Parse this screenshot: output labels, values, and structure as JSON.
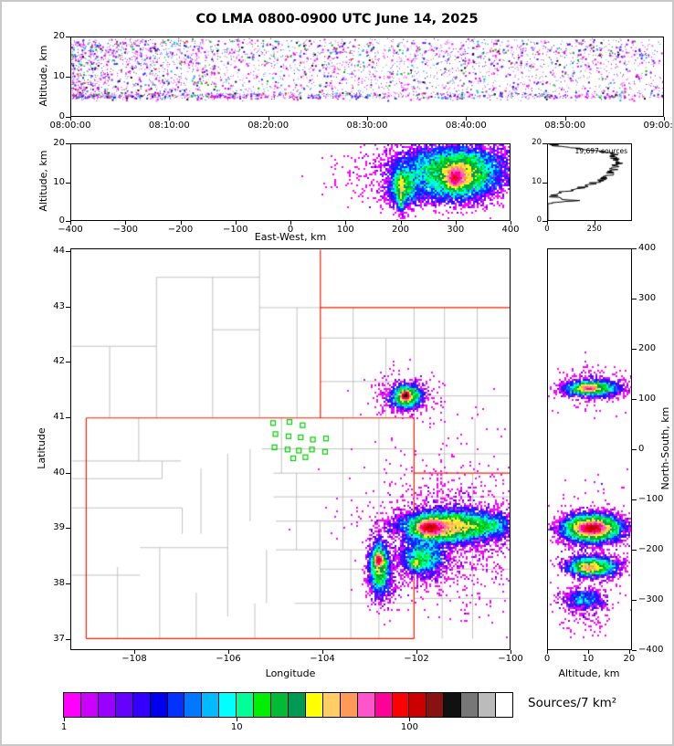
{
  "title": "CO LMA 0800-0900 UTC June 14, 2025",
  "colorbar": {
    "label": "Sources/7 km²",
    "tick_labels": [
      "1",
      "10",
      "100"
    ],
    "colors": [
      "#ff00ff",
      "#cc00ff",
      "#9900ff",
      "#6600ff",
      "#3300ff",
      "#0000ee",
      "#0033ff",
      "#0077ff",
      "#00bbff",
      "#00ffff",
      "#00ff99",
      "#00ee00",
      "#00bb33",
      "#009955",
      "#ffff00",
      "#ffcc66",
      "#ff9955",
      "#ff55cc",
      "#ff0099",
      "#ff0000",
      "#cc0000",
      "#881111",
      "#111111",
      "#777777",
      "#bbbbbb",
      "#ffffff"
    ]
  },
  "chart_data": {
    "time_height": {
      "type": "scatter",
      "ylabel": "Altitude, km",
      "xlim": [
        0,
        3600
      ],
      "ylim": [
        0,
        20
      ],
      "x_ticks": [
        {
          "v": 0,
          "label": "08:00:00"
        },
        {
          "v": 600,
          "label": "08:10:00"
        },
        {
          "v": 1200,
          "label": "08:20:00"
        },
        {
          "v": 1800,
          "label": "08:30:00"
        },
        {
          "v": 2400,
          "label": "08:40:00"
        },
        {
          "v": 3000,
          "label": "08:50:00"
        },
        {
          "v": 3600,
          "label": "09:00:00"
        }
      ],
      "y_ticks": [
        {
          "v": 0,
          "label": "0"
        },
        {
          "v": 10,
          "label": "10"
        },
        {
          "v": 20,
          "label": "20"
        }
      ],
      "points": {
        "n": 4200,
        "x_skew": 1.35,
        "alt_band": [
          5.2,
          0.45
        ],
        "alt_upper": [
          16.2,
          1.9
        ],
        "alt_range": [
          4.6,
          19.6
        ]
      },
      "point_colors": [
        "#ff00ff",
        "#2222ff",
        "#8800ff",
        "#00bbff",
        "#00bb00",
        "#ff2222",
        "#111111",
        "#ff77ff"
      ],
      "color_weights": [
        0.3,
        0.18,
        0.13,
        0.1,
        0.08,
        0.05,
        0.08,
        0.08
      ]
    },
    "east_west": {
      "type": "density-scatter",
      "xlabel": "East-West, km",
      "ylabel": "Altitude, km",
      "xlim": [
        -400,
        400
      ],
      "ylim": [
        0,
        20
      ],
      "x_ticks": [
        {
          "v": -400,
          "label": "−400"
        },
        {
          "v": -300,
          "label": "−300"
        },
        {
          "v": -200,
          "label": "−200"
        },
        {
          "v": -100,
          "label": "−100"
        },
        {
          "v": 0,
          "label": "0"
        },
        {
          "v": 100,
          "label": "100"
        },
        {
          "v": 200,
          "label": "200"
        },
        {
          "v": 300,
          "label": "300"
        },
        {
          "v": 400,
          "label": "400"
        }
      ],
      "y_ticks": [
        {
          "v": 0,
          "label": "0"
        },
        {
          "v": 10,
          "label": "10"
        },
        {
          "v": 20,
          "label": "20"
        }
      ],
      "clusters": [
        {
          "c": [
            300,
            12
          ],
          "s": [
            45,
            3.2
          ],
          "n": 9000
        },
        {
          "c": [
            310,
            12
          ],
          "s": [
            20,
            2.2
          ],
          "n": 5000
        },
        {
          "c": [
            300,
            11
          ],
          "s": [
            8,
            1.5
          ],
          "n": 2500
        },
        {
          "c": [
            205,
            9
          ],
          "s": [
            12,
            2.5
          ],
          "n": 2200
        },
        {
          "c": [
            202,
            7.5
          ],
          "s": [
            3,
            2.8
          ],
          "n": 700
        },
        {
          "c": [
            280,
            13
          ],
          "s": [
            75,
            3.5
          ],
          "n": 2000
        },
        {
          "c": [
            300,
            16.5
          ],
          "s": [
            55,
            2.0
          ],
          "n": 1500
        },
        {
          "c": [
            245,
            6
          ],
          "s": [
            50,
            1.5
          ],
          "n": 400
        }
      ]
    },
    "alt_histogram": {
      "type": "line",
      "annotation": "19,697 sources",
      "xlim": [
        0,
        450
      ],
      "ylim": [
        0,
        20
      ],
      "x_ticks": [
        {
          "v": 0,
          "label": "0"
        },
        {
          "v": 250,
          "label": "250"
        }
      ],
      "y_ticks": [
        {
          "v": 0,
          "label": "0"
        },
        {
          "v": 10,
          "label": "10"
        },
        {
          "v": 20,
          "label": "20"
        }
      ],
      "profile_alt_count": [
        [
          0,
          0
        ],
        [
          4.4,
          0
        ],
        [
          4.6,
          10
        ],
        [
          5.0,
          120
        ],
        [
          5.2,
          170
        ],
        [
          5.5,
          80
        ],
        [
          6.0,
          35
        ],
        [
          6.5,
          30
        ],
        [
          7.0,
          50
        ],
        [
          7.5,
          90
        ],
        [
          8,
          140
        ],
        [
          9,
          210
        ],
        [
          10,
          260
        ],
        [
          11,
          300
        ],
        [
          12,
          330
        ],
        [
          13,
          345
        ],
        [
          14,
          365
        ],
        [
          15,
          380
        ],
        [
          15.5,
          390
        ],
        [
          16,
          370
        ],
        [
          17,
          355
        ],
        [
          17.5,
          360
        ],
        [
          18,
          300
        ],
        [
          18.5,
          230
        ],
        [
          19,
          140
        ],
        [
          19.5,
          60
        ],
        [
          20,
          10
        ]
      ]
    },
    "map": {
      "type": "density-scatter-map",
      "xlabel": "Longitude",
      "ylabel": "Latitude",
      "xlim": [
        -109.36,
        -100.0
      ],
      "ylim": [
        36.8,
        44.05
      ],
      "x_ticks": [
        {
          "v": -108,
          "label": "−108"
        },
        {
          "v": -106,
          "label": "−106"
        },
        {
          "v": -104,
          "label": "−104"
        },
        {
          "v": -102,
          "label": "−102"
        },
        {
          "v": -100,
          "label": "−100"
        }
      ],
      "y_ticks": [
        {
          "v": 37,
          "label": "37"
        },
        {
          "v": 38,
          "label": "38"
        },
        {
          "v": 39,
          "label": "39"
        },
        {
          "v": 40,
          "label": "40"
        },
        {
          "v": 41,
          "label": "41"
        },
        {
          "v": 42,
          "label": "42"
        },
        {
          "v": 43,
          "label": "43"
        },
        {
          "v": 44,
          "label": "44"
        }
      ],
      "state_border_color": "#ee2200",
      "county_border_color": "#b3b3b3",
      "station_color": "#00cc00",
      "state_borders": [
        [
          -109.05,
          37.0,
          -109.05,
          41.0
        ],
        [
          -109.05,
          41.0,
          -102.05,
          41.0
        ],
        [
          -102.05,
          41.0,
          -102.05,
          37.0
        ],
        [
          -102.05,
          37.0,
          -109.05,
          37.0
        ],
        [
          -104.05,
          44.05,
          -104.05,
          41.0
        ],
        [
          -104.05,
          43.0,
          -100.0,
          43.0
        ],
        [
          -102.05,
          40.0,
          -100.0,
          40.0
        ]
      ],
      "county_borders": [
        [
          -108.55,
          41.0,
          -108.55,
          42.3
        ],
        [
          -109.36,
          42.3,
          -107.55,
          42.3
        ],
        [
          -107.55,
          41.0,
          -107.55,
          43.55
        ],
        [
          -107.55,
          43.55,
          -105.35,
          43.55
        ],
        [
          -106.35,
          41.0,
          -106.35,
          43.55
        ],
        [
          -106.35,
          42.6,
          -105.35,
          42.6
        ],
        [
          -105.35,
          41.0,
          -105.35,
          44.05
        ],
        [
          -104.55,
          41.0,
          -104.55,
          43.0
        ],
        [
          -105.35,
          43.0,
          -104.05,
          43.0
        ],
        [
          -103.35,
          41.0,
          -103.35,
          43.0
        ],
        [
          -102.65,
          41.0,
          -102.65,
          42.45
        ],
        [
          -102.05,
          41.0,
          -102.05,
          43.0
        ],
        [
          -101.4,
          41.0,
          -101.4,
          43.0
        ],
        [
          -100.7,
          41.0,
          -100.7,
          43.0
        ],
        [
          -104.05,
          42.45,
          -100.0,
          42.45
        ],
        [
          -102.05,
          41.4,
          -100.0,
          41.4
        ],
        [
          -104.05,
          41.66,
          -102.05,
          41.66
        ],
        [
          -100.75,
          40.0,
          -100.75,
          41.0
        ],
        [
          -101.4,
          40.0,
          -101.4,
          41.0
        ],
        [
          -102.05,
          40.35,
          -100.0,
          40.35
        ],
        [
          -101.45,
          37.0,
          -101.45,
          40.0
        ],
        [
          -100.8,
          37.0,
          -100.8,
          40.0
        ],
        [
          -102.05,
          39.57,
          -100.0,
          39.57
        ],
        [
          -102.05,
          39.13,
          -100.0,
          39.13
        ],
        [
          -102.05,
          38.7,
          -100.0,
          38.7
        ],
        [
          -102.05,
          38.26,
          -100.0,
          38.26
        ],
        [
          -102.05,
          37.73,
          -100.0,
          37.73
        ],
        [
          -102.8,
          37.0,
          -102.8,
          41.0
        ],
        [
          -103.57,
          38.61,
          -103.57,
          41.0
        ],
        [
          -103.4,
          37.0,
          -103.4,
          38.61
        ],
        [
          -104.06,
          37.0,
          -104.06,
          39.13
        ],
        [
          -104.56,
          38.61,
          -104.56,
          40.0
        ],
        [
          -104.88,
          40.0,
          -104.88,
          41.0
        ],
        [
          -105.3,
          40.44,
          -102.05,
          40.44
        ],
        [
          -105.05,
          40.0,
          -102.05,
          40.0
        ],
        [
          -105.05,
          39.57,
          -102.05,
          39.57
        ],
        [
          -105.0,
          39.13,
          -102.05,
          39.13
        ],
        [
          -105.0,
          38.61,
          -102.05,
          38.61
        ],
        [
          -104.06,
          38.26,
          -102.05,
          38.26
        ],
        [
          -104.6,
          37.64,
          -102.05,
          37.64
        ],
        [
          -106.03,
          37.4,
          -106.03,
          40.35
        ],
        [
          -105.55,
          39.13,
          -105.55,
          40.44
        ],
        [
          -106.6,
          38.9,
          -106.6,
          40.09
        ],
        [
          -107.48,
          37.0,
          -107.48,
          38.65
        ],
        [
          -108.38,
          37.0,
          -108.38,
          38.3
        ],
        [
          -109.36,
          38.15,
          -107.9,
          38.15
        ],
        [
          -107.9,
          38.65,
          -106.03,
          38.65
        ],
        [
          -109.36,
          39.37,
          -107.0,
          39.37
        ],
        [
          -107.0,
          38.9,
          -107.0,
          39.37
        ],
        [
          -109.36,
          39.9,
          -107.43,
          39.9
        ],
        [
          -107.43,
          39.9,
          -107.43,
          40.22
        ],
        [
          -109.36,
          40.22,
          -107.03,
          40.22
        ],
        [
          -107.93,
          40.22,
          -107.93,
          41.0
        ],
        [
          -106.7,
          37.0,
          -106.7,
          37.83
        ],
        [
          -105.45,
          37.0,
          -105.45,
          37.64
        ],
        [
          -105.2,
          37.64,
          -105.2,
          38.61
        ]
      ],
      "stations": [
        [
          -105.05,
          40.9
        ],
        [
          -104.7,
          40.92
        ],
        [
          -104.42,
          40.86
        ],
        [
          -105.0,
          40.7
        ],
        [
          -104.72,
          40.66
        ],
        [
          -104.46,
          40.64
        ],
        [
          -104.2,
          40.6
        ],
        [
          -103.92,
          40.62
        ],
        [
          -105.02,
          40.46
        ],
        [
          -104.74,
          40.42
        ],
        [
          -104.5,
          40.4
        ],
        [
          -104.22,
          40.42
        ],
        [
          -103.94,
          40.38
        ],
        [
          -104.62,
          40.26
        ],
        [
          -104.36,
          40.28
        ]
      ],
      "clusters": [
        {
          "c": [
            -102.2,
            41.38
          ],
          "s": [
            0.16,
            0.1
          ],
          "n": 2500
        },
        {
          "c": [
            -102.22,
            41.4
          ],
          "s": [
            0.05,
            0.04
          ],
          "n": 1500
        },
        {
          "c": [
            -102.2,
            41.4
          ],
          "s": [
            0.35,
            0.2
          ],
          "n": 300
        },
        {
          "c": [
            -101.35,
            39.02
          ],
          "s": [
            0.45,
            0.13
          ],
          "n": 12000
        },
        {
          "c": [
            -101.7,
            39.0
          ],
          "s": [
            0.15,
            0.08
          ],
          "n": 5000
        },
        {
          "c": [
            -101.15,
            39.08
          ],
          "s": [
            0.75,
            0.33
          ],
          "n": 1300
        },
        {
          "c": [
            -100.45,
            39.05
          ],
          "s": [
            0.28,
            0.12
          ],
          "n": 1200
        },
        {
          "c": [
            -102.78,
            38.3
          ],
          "s": [
            0.1,
            0.22
          ],
          "n": 3000
        },
        {
          "c": [
            -102.8,
            38.42
          ],
          "s": [
            0.05,
            0.06
          ],
          "n": 1200
        },
        {
          "c": [
            -102.7,
            38.05
          ],
          "s": [
            0.18,
            0.25
          ],
          "n": 400
        },
        {
          "c": [
            -101.85,
            38.45
          ],
          "s": [
            0.22,
            0.16
          ],
          "n": 2200
        },
        {
          "c": [
            -102.0,
            38.35
          ],
          "s": [
            0.05,
            0.05
          ],
          "n": 400
        },
        {
          "c": [
            -101.8,
            38.4
          ],
          "s": [
            0.5,
            0.33
          ],
          "n": 500
        },
        {
          "c": [
            -101.5,
            39.6
          ],
          "s": [
            1.1,
            0.85
          ],
          "n": 200
        },
        {
          "c": [
            -100.6,
            38.2
          ],
          "s": [
            0.5,
            0.4
          ],
          "n": 150
        }
      ]
    },
    "north_south": {
      "type": "density-scatter",
      "xlabel": "Altitude, km",
      "ylabel": "North-South, km",
      "xlim": [
        0,
        20.7
      ],
      "ylim": [
        -400,
        400
      ],
      "x_ticks": [
        {
          "v": 0,
          "label": "0"
        },
        {
          "v": 10,
          "label": "10"
        },
        {
          "v": 20,
          "label": "20"
        }
      ],
      "y_ticks": [
        {
          "v": -400,
          "label": "−400"
        },
        {
          "v": -300,
          "label": "−300"
        },
        {
          "v": -200,
          "label": "−200"
        },
        {
          "v": -100,
          "label": "−100"
        },
        {
          "v": 0,
          "label": "0"
        },
        {
          "v": 100,
          "label": "100"
        },
        {
          "v": 200,
          "label": "200"
        },
        {
          "v": 300,
          "label": "300"
        },
        {
          "v": 400,
          "label": "400"
        }
      ],
      "clusters": [
        {
          "c": [
            11,
            122
          ],
          "s": [
            3.5,
            8
          ],
          "n": 2500
        },
        {
          "c": [
            10,
            122
          ],
          "s": [
            1.5,
            4
          ],
          "n": 1000
        },
        {
          "c": [
            11,
            125
          ],
          "s": [
            4.5,
            22
          ],
          "n": 250
        },
        {
          "c": [
            11,
            -158
          ],
          "s": [
            3.5,
            13
          ],
          "n": 9000
        },
        {
          "c": [
            11,
            -158
          ],
          "s": [
            1.8,
            6
          ],
          "n": 3000
        },
        {
          "c": [
            11.5,
            -195
          ],
          "s": [
            4.5,
            55
          ],
          "n": 400
        },
        {
          "c": [
            11,
            -235
          ],
          "s": [
            3.0,
            10
          ],
          "n": 3000
        },
        {
          "c": [
            10,
            -238
          ],
          "s": [
            1.5,
            5
          ],
          "n": 800
        },
        {
          "c": [
            9,
            -300
          ],
          "s": [
            2.5,
            10
          ],
          "n": 700
        },
        {
          "c": [
            10,
            -325
          ],
          "s": [
            3.0,
            22
          ],
          "n": 150
        }
      ]
    }
  }
}
